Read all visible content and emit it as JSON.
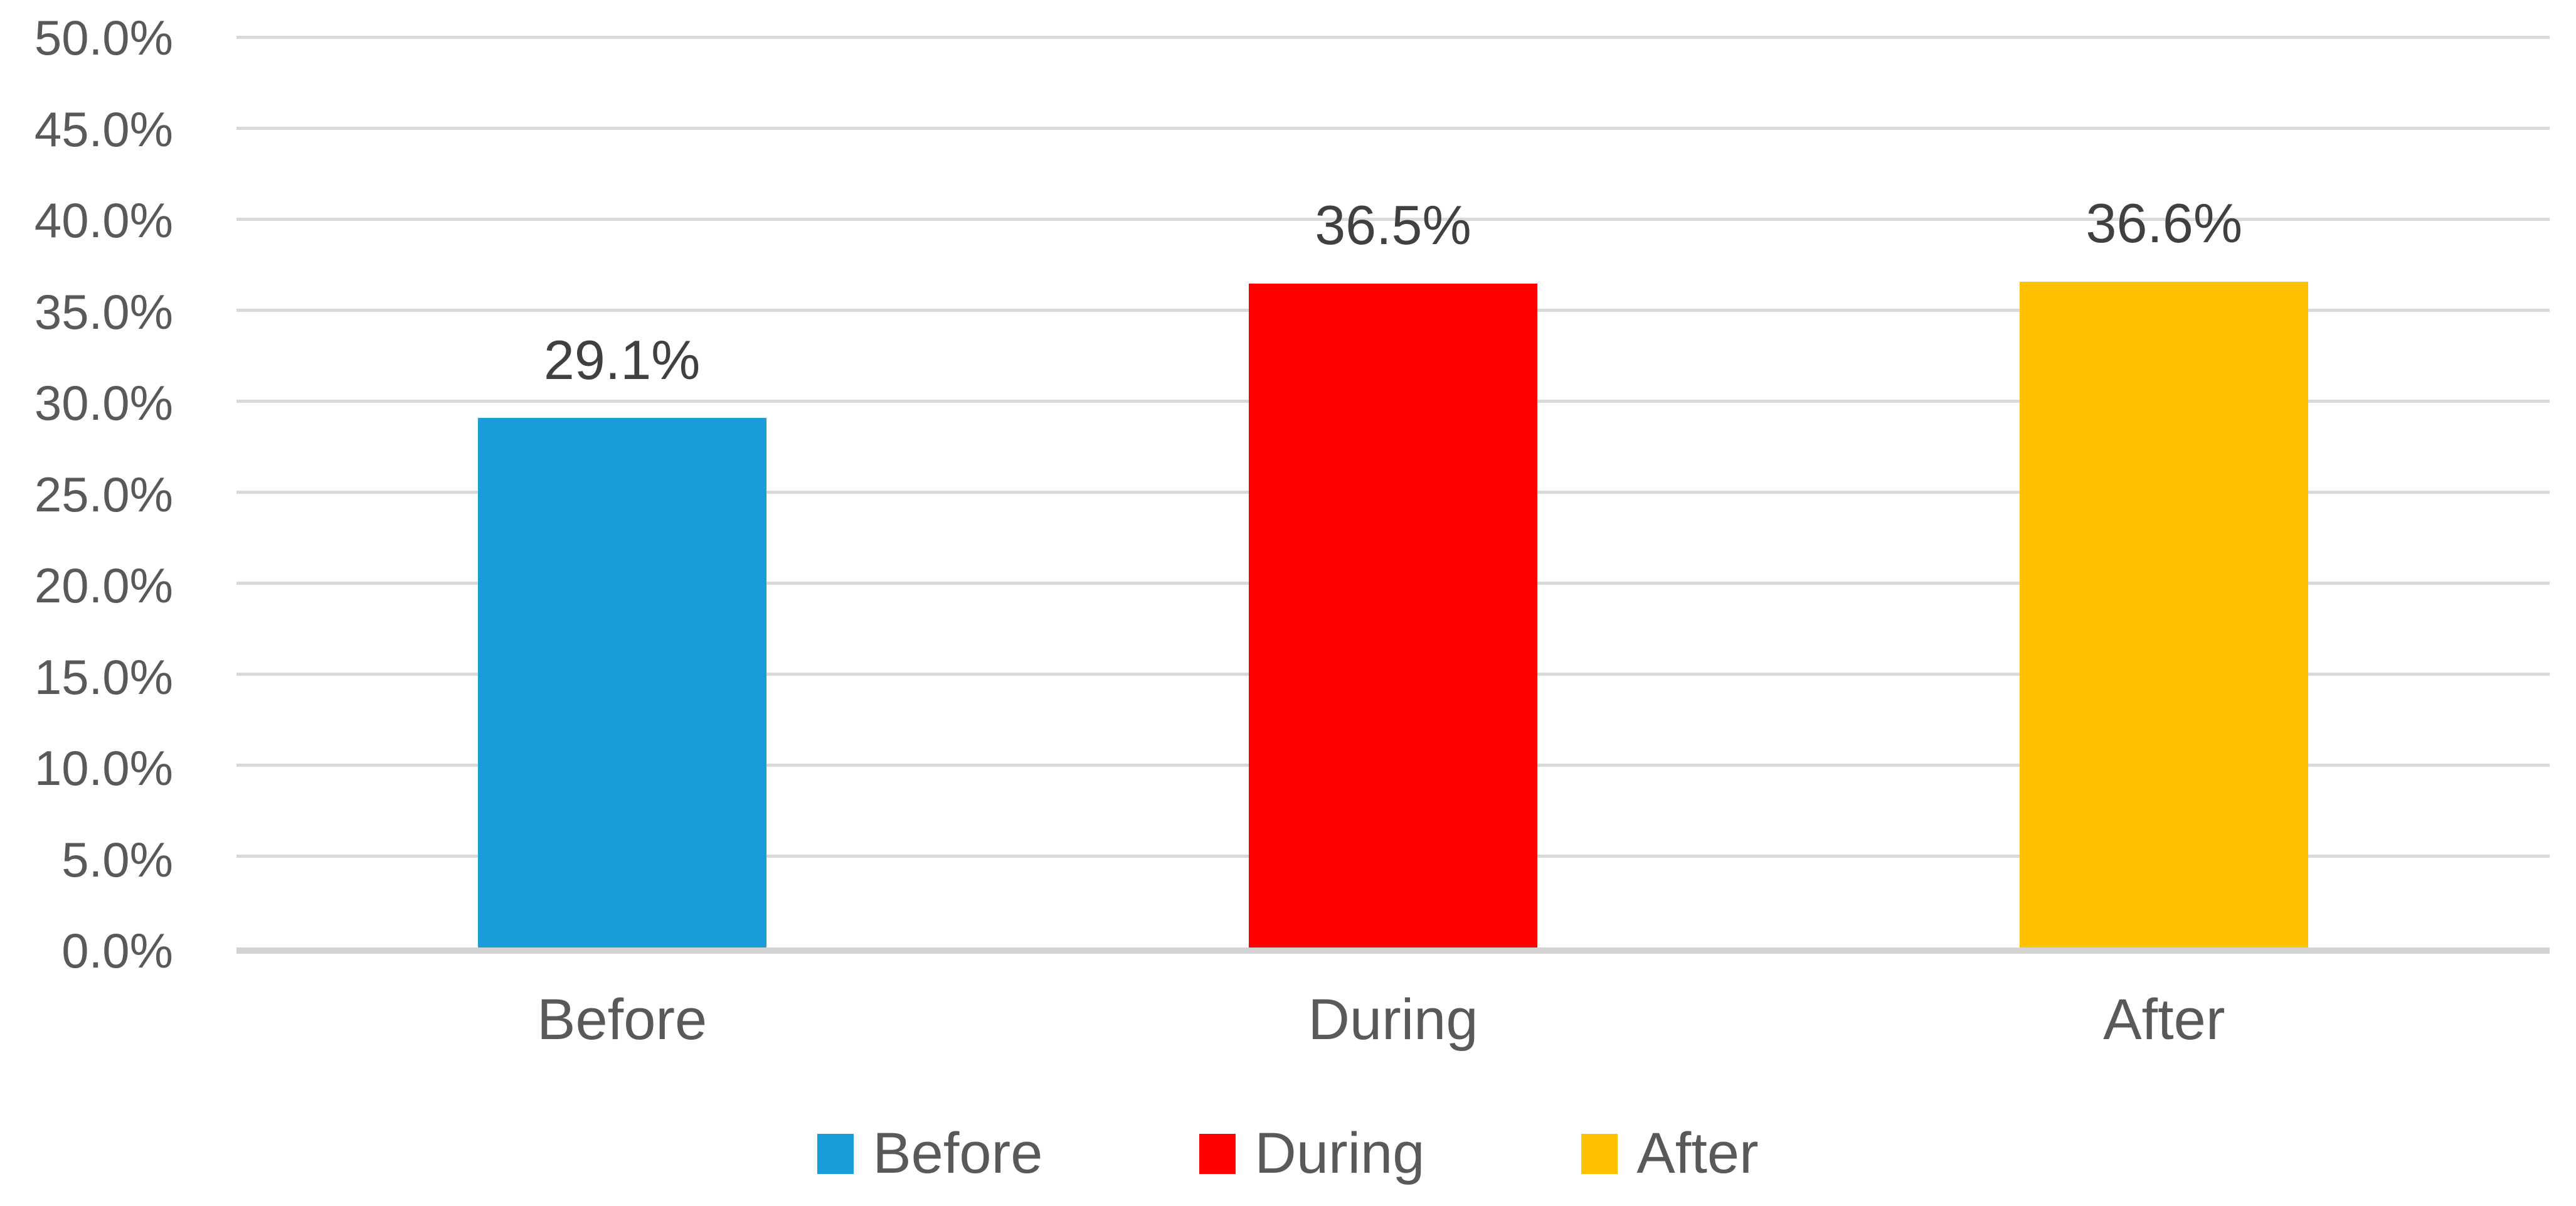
{
  "chart_data": {
    "type": "bar",
    "title": "",
    "xlabel": "",
    "ylabel": "",
    "categories": [
      "Before",
      "During",
      "After"
    ],
    "values": [
      29.1,
      36.5,
      36.6
    ],
    "data_labels": [
      "29.1%",
      "36.5%",
      "36.6%"
    ],
    "colors": [
      "#199CD9",
      "#FE0000",
      "#FFC000"
    ],
    "ylim": [
      0,
      50
    ],
    "ytick_step": 5,
    "yticks": [
      "0.0%",
      "5.0%",
      "10.0%",
      "15.0%",
      "20.0%",
      "25.0%",
      "30.0%",
      "35.0%",
      "40.0%",
      "45.0%",
      "50.0%"
    ],
    "grid": true,
    "legend": {
      "position": "bottom",
      "items": [
        "Before",
        "During",
        "After"
      ]
    }
  },
  "styles": {
    "grid_color": "#D9D9D9",
    "axis_line_color": "#D2D2D2",
    "tick_text_color": "#595959",
    "data_label_text_color": "#404040",
    "background_color": "#FFFFFF"
  }
}
